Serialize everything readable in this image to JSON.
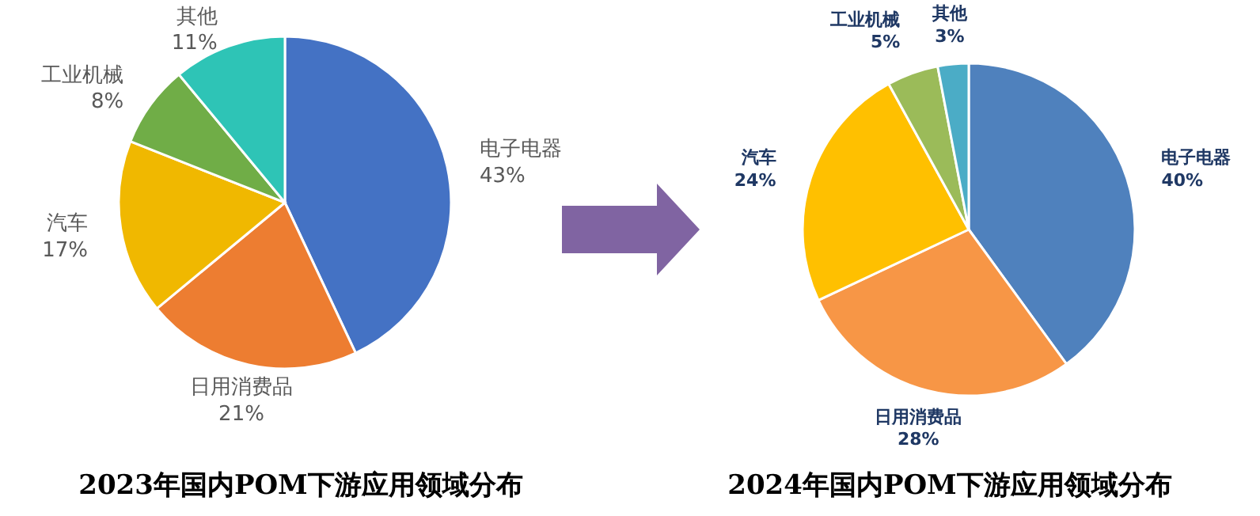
{
  "chart_data": [
    {
      "type": "pie",
      "title": "2023年国内POM下游应用领域分布",
      "categories": [
        "电子电器",
        "日用消费品",
        "汽车",
        "工业机械",
        "其他"
      ],
      "values": [
        43,
        21,
        17,
        8,
        11
      ],
      "value_labels": [
        "43%",
        "21%",
        "17%",
        "8%",
        "11%"
      ],
      "colors": [
        "#4472c4",
        "#ed7d31",
        "#f0b800",
        "#70ad47",
        "#2ec4b6"
      ]
    },
    {
      "type": "pie",
      "title": "2024年国内POM下游应用领域分布",
      "categories": [
        "电子电器",
        "日用消费品",
        "汽车",
        "工业机械",
        "其他"
      ],
      "values": [
        40,
        28,
        24,
        5,
        3
      ],
      "value_labels": [
        "40%",
        "28%",
        "24%",
        "5%",
        "3%"
      ],
      "colors": [
        "#4f81bd",
        "#f79646",
        "#ffc000",
        "#9bbb59",
        "#4bacc6"
      ]
    }
  ]
}
